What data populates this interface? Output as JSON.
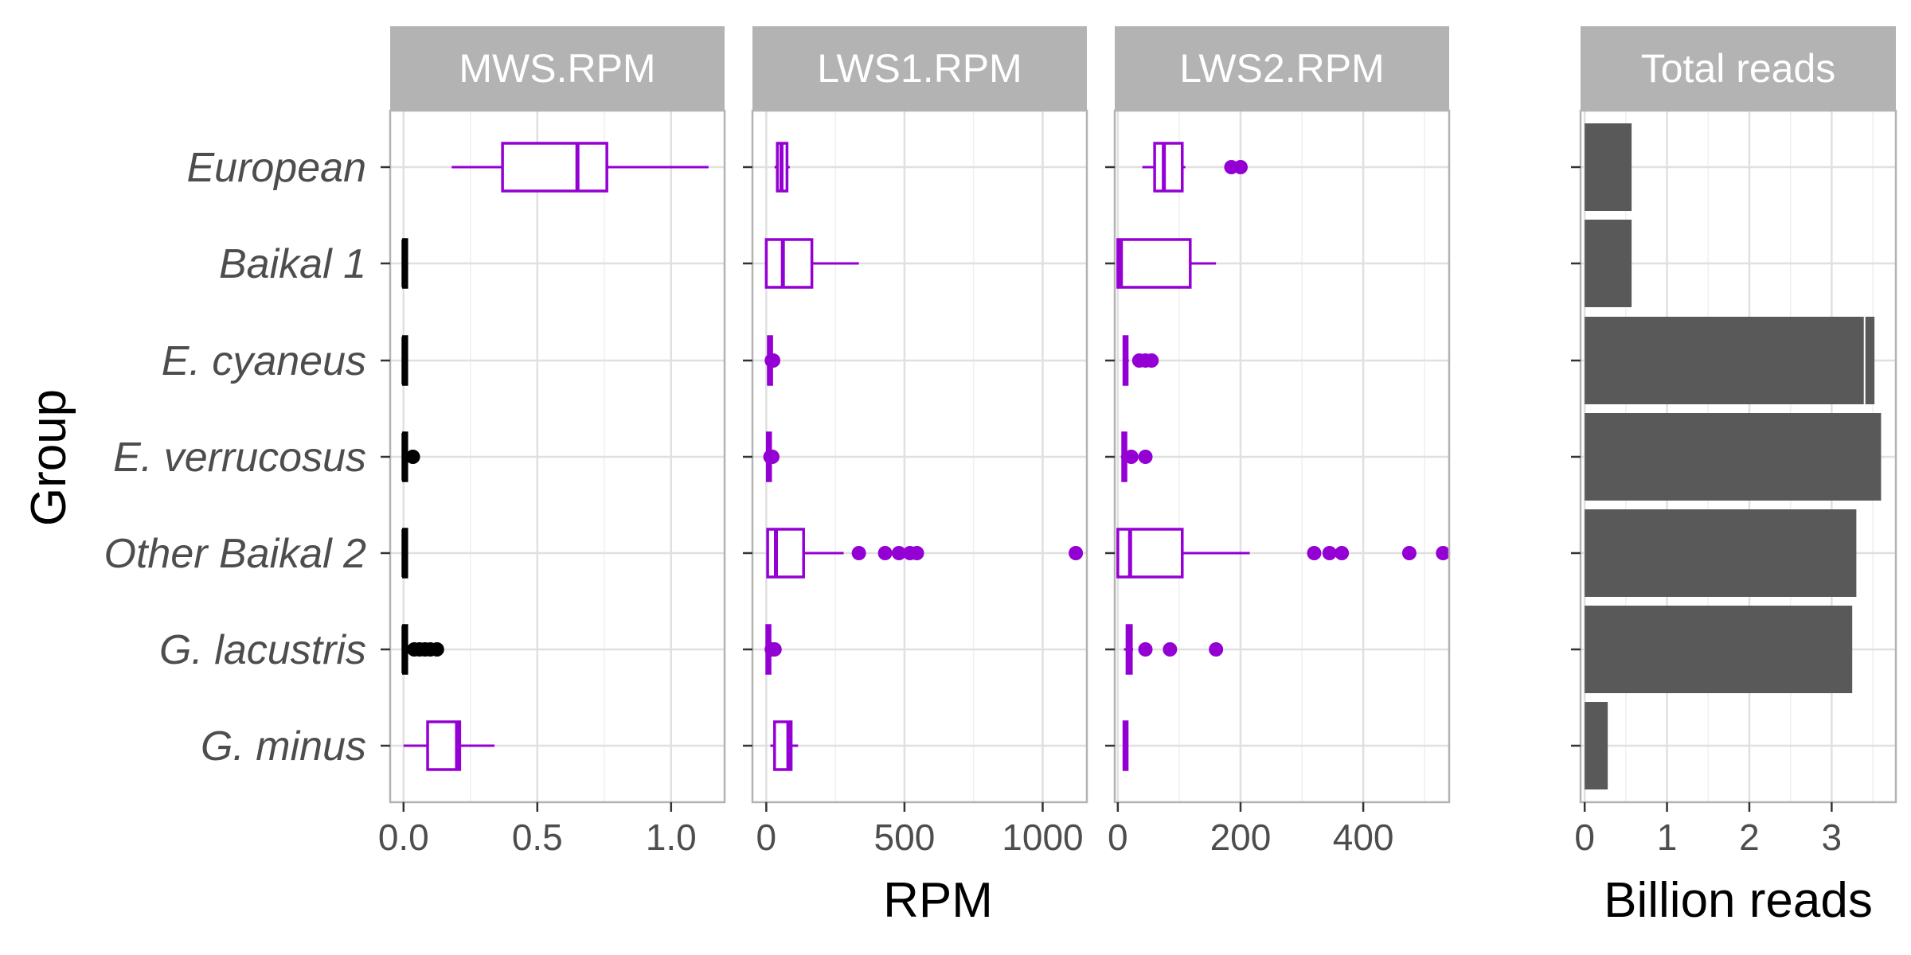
{
  "colors": {
    "box": "#9400D3",
    "black": "#000000",
    "bar": "#595959",
    "strip": "#b3b3b3",
    "grid": "#e0e0e0",
    "border": "#b3b3b3"
  },
  "ylabel": "Group",
  "groups": [
    "European",
    "Baikal 1",
    "E. cyaneus",
    "E. verrucosus",
    "Other Baikal 2",
    "G. lacustris",
    "G. minus"
  ],
  "rpm_xlabel": "RPM",
  "bar_xlabel": "Billion reads",
  "chart_data": [
    {
      "type": "boxplot",
      "title": "MWS.RPM",
      "xlim": [
        -0.05,
        1.2
      ],
      "ticks": [
        "0.0",
        "0.5",
        "1.0"
      ],
      "tick_values": [
        0,
        0.5,
        1.0
      ],
      "boxes": [
        {
          "group": "European",
          "min": 0.18,
          "q1": 0.37,
          "median": 0.65,
          "q3": 0.76,
          "max": 1.14,
          "outliers": [],
          "color": "box"
        },
        {
          "group": "Baikal 1",
          "min": 0,
          "q1": 0,
          "median": 0,
          "q3": 0,
          "max": 0,
          "outliers": [],
          "color": "black"
        },
        {
          "group": "E. cyaneus",
          "min": 0,
          "q1": 0,
          "median": 0,
          "q3": 0,
          "max": 0,
          "outliers": [],
          "color": "black"
        },
        {
          "group": "E. verrucosus",
          "min": 0,
          "q1": 0,
          "median": 0,
          "q3": 0,
          "max": 0,
          "outliers": [
            0.035
          ],
          "color": "black"
        },
        {
          "group": "Other Baikal 2",
          "min": 0,
          "q1": 0,
          "median": 0,
          "q3": 0,
          "max": 0,
          "outliers": [],
          "color": "black"
        },
        {
          "group": "G. lacustris",
          "min": 0,
          "q1": 0,
          "median": 0,
          "q3": 0.01,
          "max": 0.015,
          "outliers": [
            0.04,
            0.06,
            0.08,
            0.1,
            0.125
          ],
          "color": "black"
        },
        {
          "group": "G. minus",
          "min": 0,
          "q1": 0.09,
          "median": 0.2,
          "q3": 0.21,
          "max": 0.34,
          "outliers": [],
          "color": "box"
        }
      ]
    },
    {
      "type": "boxplot",
      "title": "LWS1.RPM",
      "xlim": [
        -50,
        1160
      ],
      "ticks": [
        "0",
        "500",
        "1000"
      ],
      "tick_values": [
        0,
        500,
        1000
      ],
      "boxes": [
        {
          "group": "European",
          "min": 30,
          "q1": 40,
          "median": 55,
          "q3": 75,
          "max": 85,
          "outliers": [],
          "color": "box"
        },
        {
          "group": "Baikal 1",
          "min": 0,
          "q1": 0,
          "median": 60,
          "q3": 165,
          "max": 335,
          "outliers": [],
          "color": "box"
        },
        {
          "group": "E. cyaneus",
          "min": 5,
          "q1": 8,
          "median": 10,
          "q3": 12,
          "max": 15,
          "outliers": [
            20,
            25
          ],
          "color": "box"
        },
        {
          "group": "E. verrucosus",
          "min": 2,
          "q1": 4,
          "median": 6,
          "q3": 8,
          "max": 10,
          "outliers": [
            15,
            22
          ],
          "color": "box"
        },
        {
          "group": "Other Baikal 2",
          "min": 0,
          "q1": 5,
          "median": 35,
          "q3": 135,
          "max": 280,
          "outliers": [
            335,
            430,
            480,
            520,
            545,
            1120
          ],
          "color": "box"
        },
        {
          "group": "G. lacustris",
          "min": 0,
          "q1": 2,
          "median": 5,
          "q3": 8,
          "max": 10,
          "outliers": [
            20,
            30
          ],
          "color": "box"
        },
        {
          "group": "G. minus",
          "min": 15,
          "q1": 30,
          "median": 80,
          "q3": 90,
          "max": 115,
          "outliers": [],
          "color": "box"
        }
      ]
    },
    {
      "type": "boxplot",
      "title": "LWS2.RPM",
      "xlim": [
        -5,
        540
      ],
      "ticks": [
        "0",
        "200",
        "400"
      ],
      "tick_values": [
        0,
        200,
        400
      ],
      "boxes": [
        {
          "group": "European",
          "min": 40,
          "q1": 60,
          "median": 75,
          "q3": 105,
          "max": 110,
          "outliers": [
            185,
            200
          ],
          "color": "box"
        },
        {
          "group": "Baikal 1",
          "min": 0,
          "q1": 0,
          "median": 5,
          "q3": 118,
          "max": 160,
          "outliers": [],
          "color": "box"
        },
        {
          "group": "E. cyaneus",
          "min": 8,
          "q1": 10,
          "median": 12,
          "q3": 15,
          "max": 18,
          "outliers": [
            35,
            45,
            55
          ],
          "color": "box"
        },
        {
          "group": "E. verrucosus",
          "min": 5,
          "q1": 8,
          "median": 10,
          "q3": 12,
          "max": 15,
          "outliers": [
            22,
            45
          ],
          "color": "box"
        },
        {
          "group": "Other Baikal 2",
          "min": 0,
          "q1": 0,
          "median": 20,
          "q3": 105,
          "max": 215,
          "outliers": [
            320,
            345,
            365,
            475,
            530
          ],
          "color": "box"
        },
        {
          "group": "G. lacustris",
          "min": 10,
          "q1": 15,
          "median": 18,
          "q3": 22,
          "max": 25,
          "outliers": [
            45,
            85,
            160
          ],
          "color": "box"
        },
        {
          "group": "G. minus",
          "min": 8,
          "q1": 10,
          "median": 12,
          "q3": 14,
          "max": 16,
          "outliers": [],
          "color": "box"
        }
      ]
    },
    {
      "type": "bar",
      "title": "Total reads",
      "xlim": [
        -0.05,
        3.78
      ],
      "ticks": [
        "0",
        "1",
        "2",
        "3"
      ],
      "tick_values": [
        0,
        1,
        2,
        3
      ],
      "categories": [
        "European",
        "Baikal 1",
        "E. cyaneus",
        "E. verrucosus",
        "Other Baikal 2",
        "G. lacustris",
        "G. minus"
      ],
      "values": [
        0.57,
        0.57,
        3.52,
        3.6,
        3.3,
        3.25,
        0.28
      ],
      "segment_break": {
        "group": "E. cyaneus",
        "at": 3.4
      }
    }
  ]
}
